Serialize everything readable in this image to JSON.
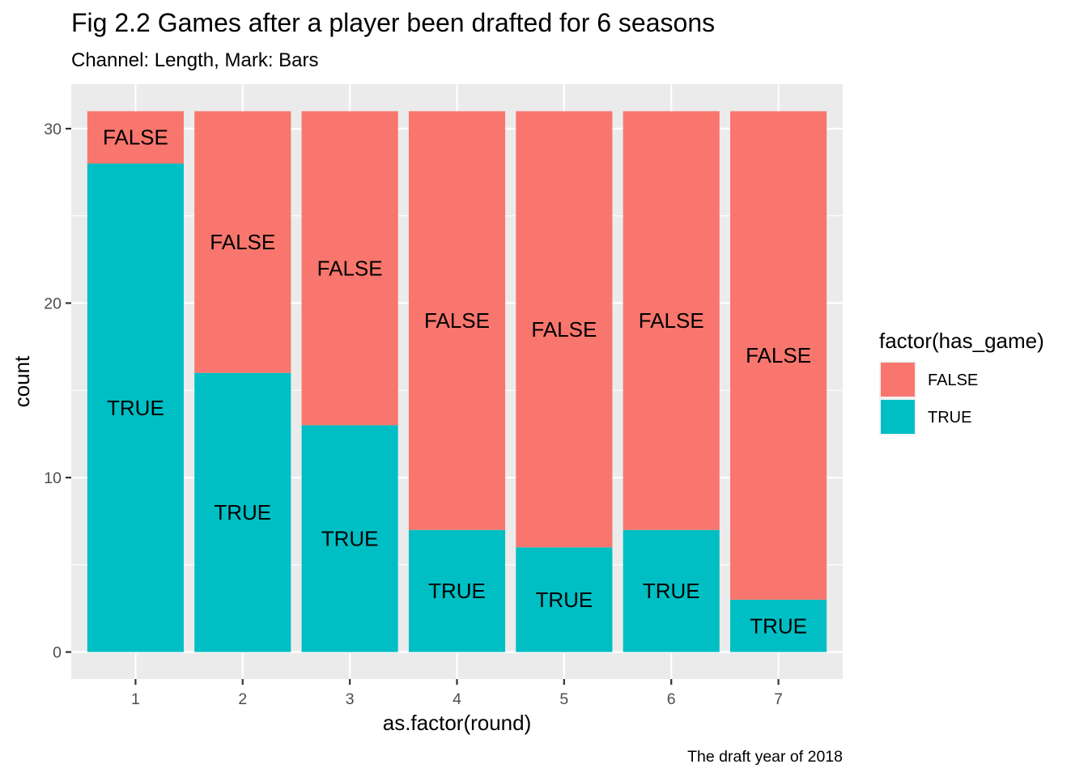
{
  "chart_data": {
    "type": "bar",
    "stacked": true,
    "title": "Fig 2.2 Games after a player been drafted for 6 seasons",
    "subtitle": "Channel: Length, Mark: Bars",
    "caption": "The draft year of 2018",
    "xlabel": "as.factor(round)",
    "ylabel": "count",
    "categories": [
      "1",
      "2",
      "3",
      "4",
      "5",
      "6",
      "7"
    ],
    "ylim": [
      -1.55,
      32.55
    ],
    "yticks": [
      0,
      10,
      20,
      30
    ],
    "grid": true,
    "legend_position": "right",
    "legend_title": "factor(has_game)",
    "series": [
      {
        "name": "FALSE",
        "color": "#F8766D",
        "values": [
          3,
          15,
          18,
          24,
          25,
          24,
          28
        ]
      },
      {
        "name": "TRUE",
        "color": "#00BFC4",
        "values": [
          28,
          16,
          13,
          7,
          6,
          7,
          3
        ]
      }
    ],
    "stack_order_bottom_to_top": [
      "TRUE",
      "FALSE"
    ]
  }
}
